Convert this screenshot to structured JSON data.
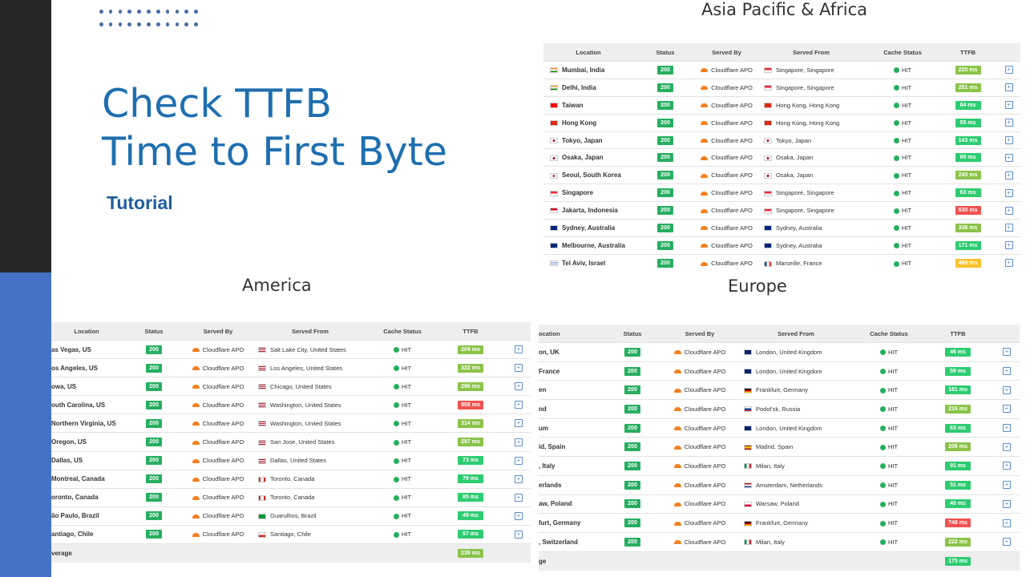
{
  "slide": {
    "title_line1": "Check TTFB",
    "title_line2": "Time to First Byte",
    "subtitle": "Tutorial"
  },
  "colors": {
    "status_green": "#27ae60",
    "ttfb_fast": "#2ecc71",
    "ttfb_mid": "#8bc34a",
    "ttfb_slow": "#ef5350",
    "ttfb_warn": "#fbc02d",
    "title_blue": "#1f6fb0"
  },
  "columns": {
    "location": "Location",
    "status": "Status",
    "served_by": "Served By",
    "served_from": "Served From",
    "cache_status": "Cache Status",
    "ttfb": "TTFB"
  },
  "asia": {
    "title": "Asia Pacific & Africa",
    "rows": [
      {
        "location": "Mumbai, India",
        "status": "200",
        "served_by": "Cloudflare APO",
        "served_from": "Singapore, Singapore",
        "cache": "HIT",
        "ttfb": "220 ms",
        "level": "mid",
        "flag": "in",
        "from_flag": "sg"
      },
      {
        "location": "Delhi, India",
        "status": "200",
        "served_by": "Cloudflare APO",
        "served_from": "Singapore, Singapore",
        "cache": "HIT",
        "ttfb": "251 ms",
        "level": "mid",
        "flag": "in",
        "from_flag": "sg"
      },
      {
        "location": "Taiwan",
        "status": "200",
        "served_by": "Cloudflare APO",
        "served_from": "Hong Kong, Hong Kong",
        "cache": "HIT",
        "ttfb": "84 ms",
        "level": "fast",
        "flag": "tw",
        "from_flag": "hk"
      },
      {
        "location": "Hong Kong",
        "status": "200",
        "served_by": "Cloudflare APO",
        "served_from": "Hong Kong, Hong Kong",
        "cache": "HIT",
        "ttfb": "55 ms",
        "level": "fast",
        "flag": "hk",
        "from_flag": "hk"
      },
      {
        "location": "Tokyo, Japan",
        "status": "200",
        "served_by": "Cloudflare APO",
        "served_from": "Tokyo, Japan",
        "cache": "HIT",
        "ttfb": "143 ms",
        "level": "fast",
        "flag": "jp",
        "from_flag": "jp"
      },
      {
        "location": "Osaka, Japan",
        "status": "200",
        "served_by": "Cloudflare APO",
        "served_from": "Osaka, Japan",
        "cache": "HIT",
        "ttfb": "69 ms",
        "level": "fast",
        "flag": "jp",
        "from_flag": "jp"
      },
      {
        "location": "Seoul, South Korea",
        "status": "200",
        "served_by": "Cloudflare APO",
        "served_from": "Osaka, Japan",
        "cache": "HIT",
        "ttfb": "243 ms",
        "level": "mid",
        "flag": "kr",
        "from_flag": "jp"
      },
      {
        "location": "Singapore",
        "status": "200",
        "served_by": "Cloudflare APO",
        "served_from": "Singapore, Singapore",
        "cache": "HIT",
        "ttfb": "63 ms",
        "level": "fast",
        "flag": "sg",
        "from_flag": "sg"
      },
      {
        "location": "Jakarta, Indonesia",
        "status": "200",
        "served_by": "Cloudflare APO",
        "served_from": "Singapore, Singapore",
        "cache": "HIT",
        "ttfb": "530 ms",
        "level": "slow",
        "flag": "id",
        "from_flag": "sg"
      },
      {
        "location": "Sydney, Australia",
        "status": "200",
        "served_by": "Cloudflare APO",
        "served_from": "Sydney, Australia",
        "cache": "HIT",
        "ttfb": "336 ms",
        "level": "mid",
        "flag": "au",
        "from_flag": "au"
      },
      {
        "location": "Melbourne, Australia",
        "status": "200",
        "served_by": "Cloudflare APO",
        "served_from": "Sydney, Australia",
        "cache": "HIT",
        "ttfb": "171 ms",
        "level": "fast",
        "flag": "au",
        "from_flag": "au"
      },
      {
        "location": "Tel Aviv, Israel",
        "status": "200",
        "served_by": "Cloudflare APO",
        "served_from": "Marseille, France",
        "cache": "HIT",
        "ttfb": "469 ms",
        "level": "warn",
        "flag": "il",
        "from_flag": "fr"
      }
    ]
  },
  "america": {
    "title": "America",
    "average_label": "verage",
    "average_ttfb": "239 ms",
    "rows": [
      {
        "location": "as Vegas, US",
        "status": "200",
        "served_by": "Cloudflare APO",
        "served_from": "Salt Lake City, United States",
        "cache": "HIT",
        "ttfb": "204 ms",
        "level": "mid",
        "from_flag": "us"
      },
      {
        "location": "os Angeles, US",
        "status": "200",
        "served_by": "Cloudflare APO",
        "served_from": "Los Angeles, United States",
        "cache": "HIT",
        "ttfb": "322 ms",
        "level": "mid",
        "from_flag": "us"
      },
      {
        "location": "owa, US",
        "status": "200",
        "served_by": "Cloudflare APO",
        "served_from": "Chicago, United States",
        "cache": "HIT",
        "ttfb": "296 ms",
        "level": "mid",
        "from_flag": "us"
      },
      {
        "location": "outh Carolina, US",
        "status": "200",
        "served_by": "Cloudflare APO",
        "served_from": "Washington, United States",
        "cache": "HIT",
        "ttfb": "858 ms",
        "level": "slow",
        "from_flag": "us"
      },
      {
        "location": "Northern Virginia, US",
        "status": "200",
        "served_by": "Cloudflare APO",
        "served_from": "Washington, United States",
        "cache": "HIT",
        "ttfb": "314 ms",
        "level": "mid",
        "from_flag": "us"
      },
      {
        "location": "Oregon, US",
        "status": "200",
        "served_by": "Cloudflare APO",
        "served_from": "San Jose, United States",
        "cache": "HIT",
        "ttfb": "297 ms",
        "level": "mid",
        "from_flag": "us"
      },
      {
        "location": "Dallas, US",
        "status": "200",
        "served_by": "Cloudflare APO",
        "served_from": "Dallas, United States",
        "cache": "HIT",
        "ttfb": "73 ms",
        "level": "fast",
        "from_flag": "us"
      },
      {
        "location": "Montreal, Canada",
        "status": "200",
        "served_by": "Cloudflare APO",
        "served_from": "Toronto, Canada",
        "cache": "HIT",
        "ttfb": "79 ms",
        "level": "fast",
        "from_flag": "ca"
      },
      {
        "location": "oronto, Canada",
        "status": "200",
        "served_by": "Cloudflare APO",
        "served_from": "Toronto, Canada",
        "cache": "HIT",
        "ttfb": "85 ms",
        "level": "fast",
        "from_flag": "ca"
      },
      {
        "location": "ão Paulo, Brazil",
        "status": "200",
        "served_by": "Cloudflare APO",
        "served_from": "Guarulhos, Brazil",
        "cache": "HIT",
        "ttfb": "49 ms",
        "level": "fast",
        "from_flag": "br"
      },
      {
        "location": "antiago, Chile",
        "status": "200",
        "served_by": "Cloudflare APO",
        "served_from": "Santiago, Chile",
        "cache": "HIT",
        "ttfb": "57 ms",
        "level": "fast",
        "from_flag": "cl"
      }
    ]
  },
  "europe": {
    "title": "Europe",
    "average_label": "ge",
    "average_ttfb": "175 ms",
    "location_header": "ocation",
    "rows": [
      {
        "location": "on, UK",
        "status": "200",
        "served_by": "Cloudflare APO",
        "served_from": "London, United Kingdom",
        "cache": "HIT",
        "ttfb": "46 ms",
        "level": "fast",
        "from_flag": "gb"
      },
      {
        "location": "France",
        "status": "200",
        "served_by": "Cloudflare APO",
        "served_from": "London, United Kingdom",
        "cache": "HIT",
        "ttfb": "59 ms",
        "level": "fast",
        "from_flag": "gb"
      },
      {
        "location": "en",
        "status": "200",
        "served_by": "Cloudflare APO",
        "served_from": "Frankfurt, Germany",
        "cache": "HIT",
        "ttfb": "181 ms",
        "level": "fast",
        "from_flag": "de"
      },
      {
        "location": "nd",
        "status": "200",
        "served_by": "Cloudflare APO",
        "served_from": "Podol'sk, Russia",
        "cache": "HIT",
        "ttfb": "216 ms",
        "level": "mid",
        "from_flag": "ru"
      },
      {
        "location": "um",
        "status": "200",
        "served_by": "Cloudflare APO",
        "served_from": "London, United Kingdom",
        "cache": "HIT",
        "ttfb": "63 ms",
        "level": "fast",
        "from_flag": "gb"
      },
      {
        "location": "id, Spain",
        "status": "200",
        "served_by": "Cloudflare APO",
        "served_from": "Madrid, Spain",
        "cache": "HIT",
        "ttfb": "206 ms",
        "level": "mid",
        "from_flag": "es"
      },
      {
        "location": ", Italy",
        "status": "200",
        "served_by": "Cloudflare APO",
        "served_from": "Milan, Italy",
        "cache": "HIT",
        "ttfb": "91 ms",
        "level": "fast",
        "from_flag": "it"
      },
      {
        "location": "erlands",
        "status": "200",
        "served_by": "Cloudflare APO",
        "served_from": "Amsterdam, Netherlands",
        "cache": "HIT",
        "ttfb": "51 ms",
        "level": "fast",
        "from_flag": "nl"
      },
      {
        "location": "aw, Poland",
        "status": "200",
        "served_by": "Cloudflare APO",
        "served_from": "Warsaw, Poland",
        "cache": "HIT",
        "ttfb": "40 ms",
        "level": "fast",
        "from_flag": "pl"
      },
      {
        "location": "furt, Germany",
        "status": "200",
        "served_by": "Cloudflare APO",
        "served_from": "Frankfurt, Germany",
        "cache": "HIT",
        "ttfb": "748 ms",
        "level": "slow",
        "from_flag": "de"
      },
      {
        "location": ", Switzerland",
        "status": "200",
        "served_by": "Cloudflare APO",
        "served_from": "Milan, Italy",
        "cache": "HIT",
        "ttfb": "222 ms",
        "level": "mid",
        "from_flag": "it"
      }
    ]
  }
}
